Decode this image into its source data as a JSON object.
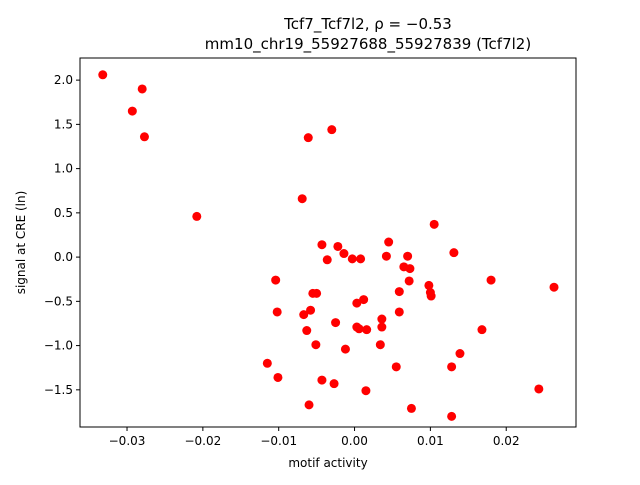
{
  "chart_data": {
    "type": "scatter",
    "title_line1": "Tcf7_Tcf7l2, ρ = −0.53",
    "title_line2": "mm10_chr19_55927688_55927839 (Tcf7l2)",
    "xlabel": "motif activity",
    "ylabel": "signal at CRE (ln)",
    "xlim": [
      -0.0362,
      0.0292
    ],
    "ylim": [
      -1.92,
      2.25
    ],
    "x_ticks": [
      {
        "value": -0.03,
        "label": "−0.03"
      },
      {
        "value": -0.02,
        "label": "−0.02"
      },
      {
        "value": -0.01,
        "label": "−0.01"
      },
      {
        "value": 0.0,
        "label": "0.00"
      },
      {
        "value": 0.01,
        "label": "0.01"
      },
      {
        "value": 0.02,
        "label": "0.02"
      }
    ],
    "y_ticks": [
      {
        "value": -1.5,
        "label": "−1.5"
      },
      {
        "value": -1.0,
        "label": "−1.0"
      },
      {
        "value": -0.5,
        "label": "−0.5"
      },
      {
        "value": 0.0,
        "label": "0.0"
      },
      {
        "value": 0.5,
        "label": "0.5"
      },
      {
        "value": 1.0,
        "label": "1.0"
      },
      {
        "value": 1.5,
        "label": "1.5"
      },
      {
        "value": 2.0,
        "label": "2.0"
      }
    ],
    "grid": false,
    "marker_color": "#ff0000",
    "points": [
      {
        "x": -0.0332,
        "y": 2.06
      },
      {
        "x": -0.028,
        "y": 1.9
      },
      {
        "x": -0.0293,
        "y": 1.65
      },
      {
        "x": -0.0277,
        "y": 1.36
      },
      {
        "x": -0.0061,
        "y": 1.35
      },
      {
        "x": -0.003,
        "y": 1.44
      },
      {
        "x": -0.0069,
        "y": 0.66
      },
      {
        "x": -0.0208,
        "y": 0.46
      },
      {
        "x": -0.0043,
        "y": 0.14
      },
      {
        "x": -0.0022,
        "y": 0.12
      },
      {
        "x": -0.0036,
        "y": -0.03
      },
      {
        "x": -0.0014,
        "y": 0.04
      },
      {
        "x": -0.0003,
        "y": -0.02
      },
      {
        "x": 0.0008,
        "y": -0.02
      },
      {
        "x": 0.0045,
        "y": 0.17
      },
      {
        "x": 0.0042,
        "y": 0.01
      },
      {
        "x": 0.007,
        "y": 0.01
      },
      {
        "x": 0.0105,
        "y": 0.37
      },
      {
        "x": 0.0131,
        "y": 0.05
      },
      {
        "x": 0.0065,
        "y": -0.11
      },
      {
        "x": 0.0073,
        "y": -0.13
      },
      {
        "x": 0.0072,
        "y": -0.27
      },
      {
        "x": 0.0059,
        "y": -0.39
      },
      {
        "x": 0.0098,
        "y": -0.32
      },
      {
        "x": 0.01,
        "y": -0.4
      },
      {
        "x": 0.0101,
        "y": -0.44
      },
      {
        "x": 0.018,
        "y": -0.26
      },
      {
        "x": 0.0263,
        "y": -0.34
      },
      {
        "x": -0.0104,
        "y": -0.26
      },
      {
        "x": -0.0055,
        "y": -0.41
      },
      {
        "x": -0.005,
        "y": -0.41
      },
      {
        "x": 0.0012,
        "y": -0.48
      },
      {
        "x": 0.0003,
        "y": -0.52
      },
      {
        "x": -0.0102,
        "y": -0.62
      },
      {
        "x": -0.0058,
        "y": -0.6
      },
      {
        "x": -0.0067,
        "y": -0.65
      },
      {
        "x": -0.0025,
        "y": -0.74
      },
      {
        "x": 0.0003,
        "y": -0.79
      },
      {
        "x": 0.0006,
        "y": -0.81
      },
      {
        "x": 0.0016,
        "y": -0.82
      },
      {
        "x": 0.0036,
        "y": -0.7
      },
      {
        "x": 0.0036,
        "y": -0.79
      },
      {
        "x": 0.0059,
        "y": -0.62
      },
      {
        "x": -0.0063,
        "y": -0.83
      },
      {
        "x": -0.0051,
        "y": -0.99
      },
      {
        "x": -0.0012,
        "y": -1.04
      },
      {
        "x": 0.0034,
        "y": -0.99
      },
      {
        "x": 0.0168,
        "y": -0.82
      },
      {
        "x": 0.0139,
        "y": -1.09
      },
      {
        "x": -0.0115,
        "y": -1.2
      },
      {
        "x": -0.0101,
        "y": -1.36
      },
      {
        "x": -0.0043,
        "y": -1.39
      },
      {
        "x": -0.0027,
        "y": -1.43
      },
      {
        "x": 0.0055,
        "y": -1.24
      },
      {
        "x": 0.0128,
        "y": -1.24
      },
      {
        "x": 0.0015,
        "y": -1.51
      },
      {
        "x": 0.0243,
        "y": -1.49
      },
      {
        "x": -0.006,
        "y": -1.67
      },
      {
        "x": 0.0075,
        "y": -1.71
      },
      {
        "x": 0.0128,
        "y": -1.8
      }
    ]
  }
}
